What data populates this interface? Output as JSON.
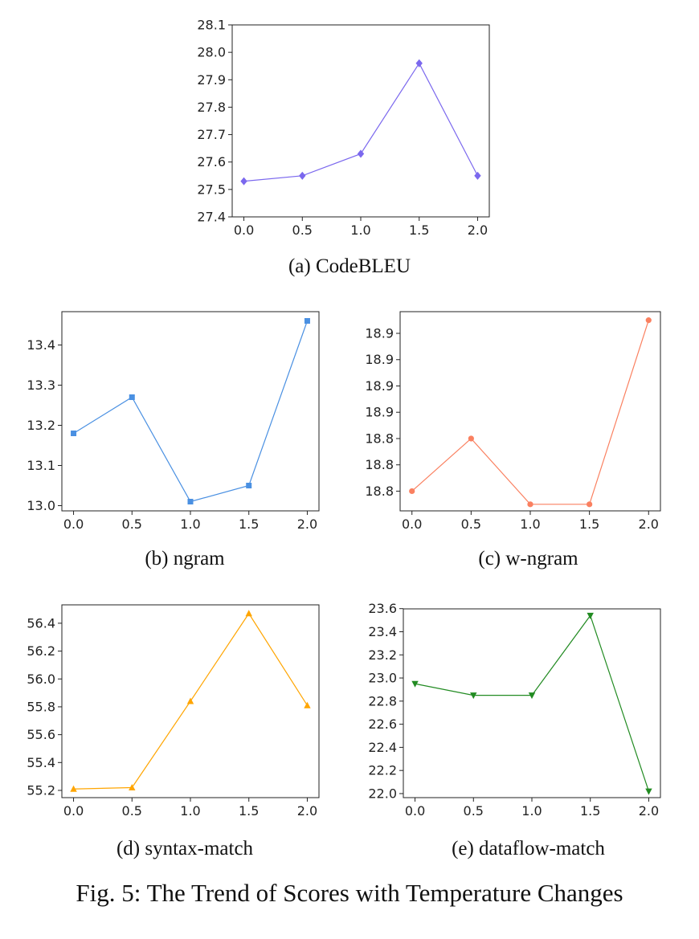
{
  "figure": {
    "caption": "Fig. 5: The Trend of Scores with Temperature Changes"
  },
  "chart_data": [
    {
      "id": "a",
      "type": "line",
      "caption": "(a) CodeBLEU",
      "color": "#7b68ee",
      "marker": "diamond",
      "x": [
        0.0,
        0.5,
        1.0,
        1.5,
        2.0
      ],
      "y": [
        27.53,
        27.55,
        27.63,
        27.96,
        27.55
      ],
      "xticks": [
        "0.0",
        "0.5",
        "1.0",
        "1.5",
        "2.0"
      ],
      "yticks": [
        27.4,
        27.5,
        27.6,
        27.7,
        27.8,
        27.9,
        28.0,
        28.1
      ],
      "ytick_labels": [
        "27.4",
        "27.5",
        "27.6",
        "27.7",
        "27.8",
        "27.9",
        "28.0",
        "28.1"
      ],
      "xlim": [
        -0.1,
        2.1
      ],
      "ylim": [
        27.4,
        28.1
      ]
    },
    {
      "id": "b",
      "type": "line",
      "caption": "(b) ngram",
      "color": "#4a90e2",
      "marker": "square",
      "x": [
        0.0,
        0.5,
        1.0,
        1.5,
        2.0
      ],
      "y": [
        13.18,
        13.27,
        13.01,
        13.05,
        13.46
      ],
      "xticks": [
        "0.0",
        "0.5",
        "1.0",
        "1.5",
        "2.0"
      ],
      "yticks": [
        13.0,
        13.1,
        13.2,
        13.3,
        13.4
      ],
      "ytick_labels": [
        "13.0",
        "13.1",
        "13.2",
        "13.3",
        "13.4"
      ],
      "xlim": [
        -0.1,
        2.1
      ],
      "ylim": [
        12.987,
        13.483
      ]
    },
    {
      "id": "c",
      "type": "line",
      "caption": "(c) w-ngram",
      "color": "#fa8060",
      "marker": "circle",
      "x": [
        0.0,
        0.5,
        1.0,
        1.5,
        2.0
      ],
      "y": [
        18.76,
        18.8,
        18.75,
        18.75,
        18.89
      ],
      "xticks": [
        "0.0",
        "0.5",
        "1.0",
        "1.5",
        "2.0"
      ],
      "yticks": [
        18.76,
        18.78,
        18.8,
        18.82,
        18.84,
        18.86,
        18.88
      ],
      "ytick_labels": [
        "18.8",
        "18.8",
        "18.8",
        "18.9",
        "18.9",
        "18.9",
        "18.9"
      ],
      "xlim": [
        -0.1,
        2.1
      ],
      "ylim": [
        18.745,
        18.8965
      ]
    },
    {
      "id": "d",
      "type": "line",
      "caption": "(d) syntax-match",
      "color": "#ffa500",
      "marker": "triangle-up",
      "x": [
        0.0,
        0.5,
        1.0,
        1.5,
        2.0
      ],
      "y": [
        55.21,
        55.22,
        55.84,
        56.47,
        55.81
      ],
      "xticks": [
        "0.0",
        "0.5",
        "1.0",
        "1.5",
        "2.0"
      ],
      "yticks": [
        55.2,
        55.4,
        55.6,
        55.8,
        56.0,
        56.2,
        56.4
      ],
      "ytick_labels": [
        "55.2",
        "55.4",
        "55.6",
        "55.8",
        "56.0",
        "56.2",
        "56.4"
      ],
      "xlim": [
        -0.1,
        2.1
      ],
      "ylim": [
        55.148,
        56.532
      ]
    },
    {
      "id": "e",
      "type": "line",
      "caption": "(e) dataflow-match",
      "color": "#228b22",
      "marker": "triangle-down",
      "x": [
        0.0,
        0.5,
        1.0,
        1.5,
        2.0
      ],
      "y": [
        22.95,
        22.85,
        22.85,
        23.54,
        22.02
      ],
      "xticks": [
        "0.0",
        "0.5",
        "1.0",
        "1.5",
        "2.0"
      ],
      "yticks": [
        22.0,
        22.2,
        22.4,
        22.6,
        22.8,
        23.0,
        23.2,
        23.4,
        23.6
      ],
      "ytick_labels": [
        "22.0",
        "22.2",
        "22.4",
        "22.6",
        "22.8",
        "23.0",
        "23.2",
        "23.4",
        "23.6"
      ],
      "xlim": [
        -0.1,
        2.1
      ],
      "ylim": [
        21.965,
        23.598
      ]
    }
  ]
}
